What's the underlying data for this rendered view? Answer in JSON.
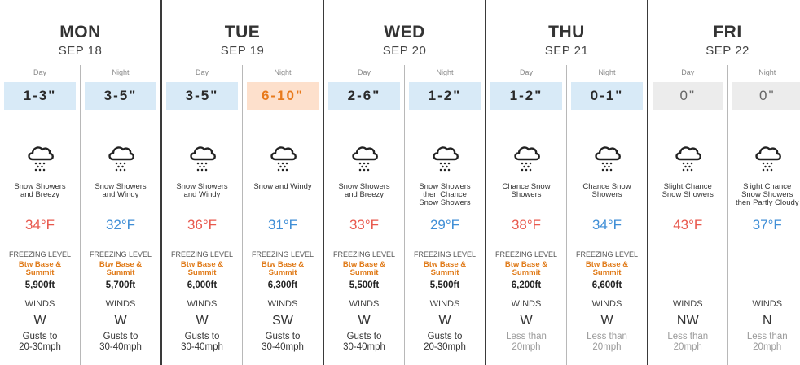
{
  "labels": {
    "day": "Day",
    "night": "Night",
    "freezing": "FREEZING LEVEL",
    "winds": "WINDS"
  },
  "days": [
    {
      "name": "MON",
      "date": "SEP 18",
      "periods": [
        {
          "snow": "1-3\"",
          "snow_style": "blue",
          "desc": [
            "Snow Showers",
            "and Breezy"
          ],
          "temp": "34°F",
          "temp_style": "warm",
          "freezing": [
            "Btw Base &",
            "Summit"
          ],
          "freezing_height": "5,900ft",
          "wind": "W",
          "gusts": [
            "Gusts to",
            "20-30mph"
          ],
          "gust_style": "dark"
        },
        {
          "snow": "3-5\"",
          "snow_style": "blue",
          "desc": [
            "Snow Showers",
            "and Windy"
          ],
          "temp": "32°F",
          "temp_style": "cold",
          "freezing": [
            "Btw Base &",
            "Summit"
          ],
          "freezing_height": "5,700ft",
          "wind": "W",
          "gusts": [
            "Gusts to",
            "30-40mph"
          ],
          "gust_style": "dark"
        }
      ]
    },
    {
      "name": "TUE",
      "date": "SEP 19",
      "periods": [
        {
          "snow": "3-5\"",
          "snow_style": "blue",
          "desc": [
            "Snow Showers",
            "and Windy"
          ],
          "temp": "36°F",
          "temp_style": "warm",
          "freezing": [
            "Btw Base &",
            "Summit"
          ],
          "freezing_height": "6,000ft",
          "wind": "W",
          "gusts": [
            "Gusts to",
            "30-40mph"
          ],
          "gust_style": "dark"
        },
        {
          "snow": "6-10\"",
          "snow_style": "orange",
          "desc": [
            "Snow and Windy"
          ],
          "temp": "31°F",
          "temp_style": "cold",
          "freezing": [
            "Btw Base &",
            "Summit"
          ],
          "freezing_height": "6,300ft",
          "wind": "SW",
          "gusts": [
            "Gusts to",
            "30-40mph"
          ],
          "gust_style": "dark"
        }
      ]
    },
    {
      "name": "WED",
      "date": "SEP 20",
      "periods": [
        {
          "snow": "2-6\"",
          "snow_style": "blue",
          "desc": [
            "Snow Showers",
            "and Breezy"
          ],
          "temp": "33°F",
          "temp_style": "warm",
          "freezing": [
            "Btw Base &",
            "Summit"
          ],
          "freezing_height": "5,500ft",
          "wind": "W",
          "gusts": [
            "Gusts to",
            "30-40mph"
          ],
          "gust_style": "dark"
        },
        {
          "snow": "1-2\"",
          "snow_style": "blue",
          "desc": [
            "Snow Showers",
            "then Chance",
            "Snow Showers"
          ],
          "temp": "29°F",
          "temp_style": "cold",
          "freezing": [
            "Btw Base &",
            "Summit"
          ],
          "freezing_height": "5,500ft",
          "wind": "W",
          "gusts": [
            "Gusts to",
            "20-30mph"
          ],
          "gust_style": "dark"
        }
      ]
    },
    {
      "name": "THU",
      "date": "SEP 21",
      "periods": [
        {
          "snow": "1-2\"",
          "snow_style": "blue",
          "desc": [
            "Chance Snow",
            "Showers"
          ],
          "temp": "38°F",
          "temp_style": "warm",
          "freezing": [
            "Btw Base &",
            "Summit"
          ],
          "freezing_height": "6,200ft",
          "wind": "W",
          "gusts": [
            "Less than",
            "20mph"
          ],
          "gust_style": "light"
        },
        {
          "snow": "0-1\"",
          "snow_style": "blue",
          "desc": [
            "Chance Snow",
            "Showers"
          ],
          "temp": "34°F",
          "temp_style": "cold",
          "freezing": [
            "Btw Base &",
            "Summit"
          ],
          "freezing_height": "6,600ft",
          "wind": "W",
          "gusts": [
            "Less than",
            "20mph"
          ],
          "gust_style": "light"
        }
      ]
    },
    {
      "name": "FRI",
      "date": "SEP 22",
      "periods": [
        {
          "snow": "0\"",
          "snow_style": "gray",
          "desc": [
            "Slight Chance",
            "Snow Showers"
          ],
          "temp": "43°F",
          "temp_style": "warm",
          "freezing": null,
          "freezing_height": null,
          "wind": "NW",
          "gusts": [
            "Less than",
            "20mph"
          ],
          "gust_style": "light"
        },
        {
          "snow": "0\"",
          "snow_style": "gray",
          "desc": [
            "Slight Chance",
            "Snow Showers",
            "then Partly Cloudy"
          ],
          "temp": "37°F",
          "temp_style": "cold",
          "freezing": null,
          "freezing_height": null,
          "wind": "N",
          "gusts": [
            "Less than",
            "20mph"
          ],
          "gust_style": "light"
        }
      ]
    }
  ]
}
